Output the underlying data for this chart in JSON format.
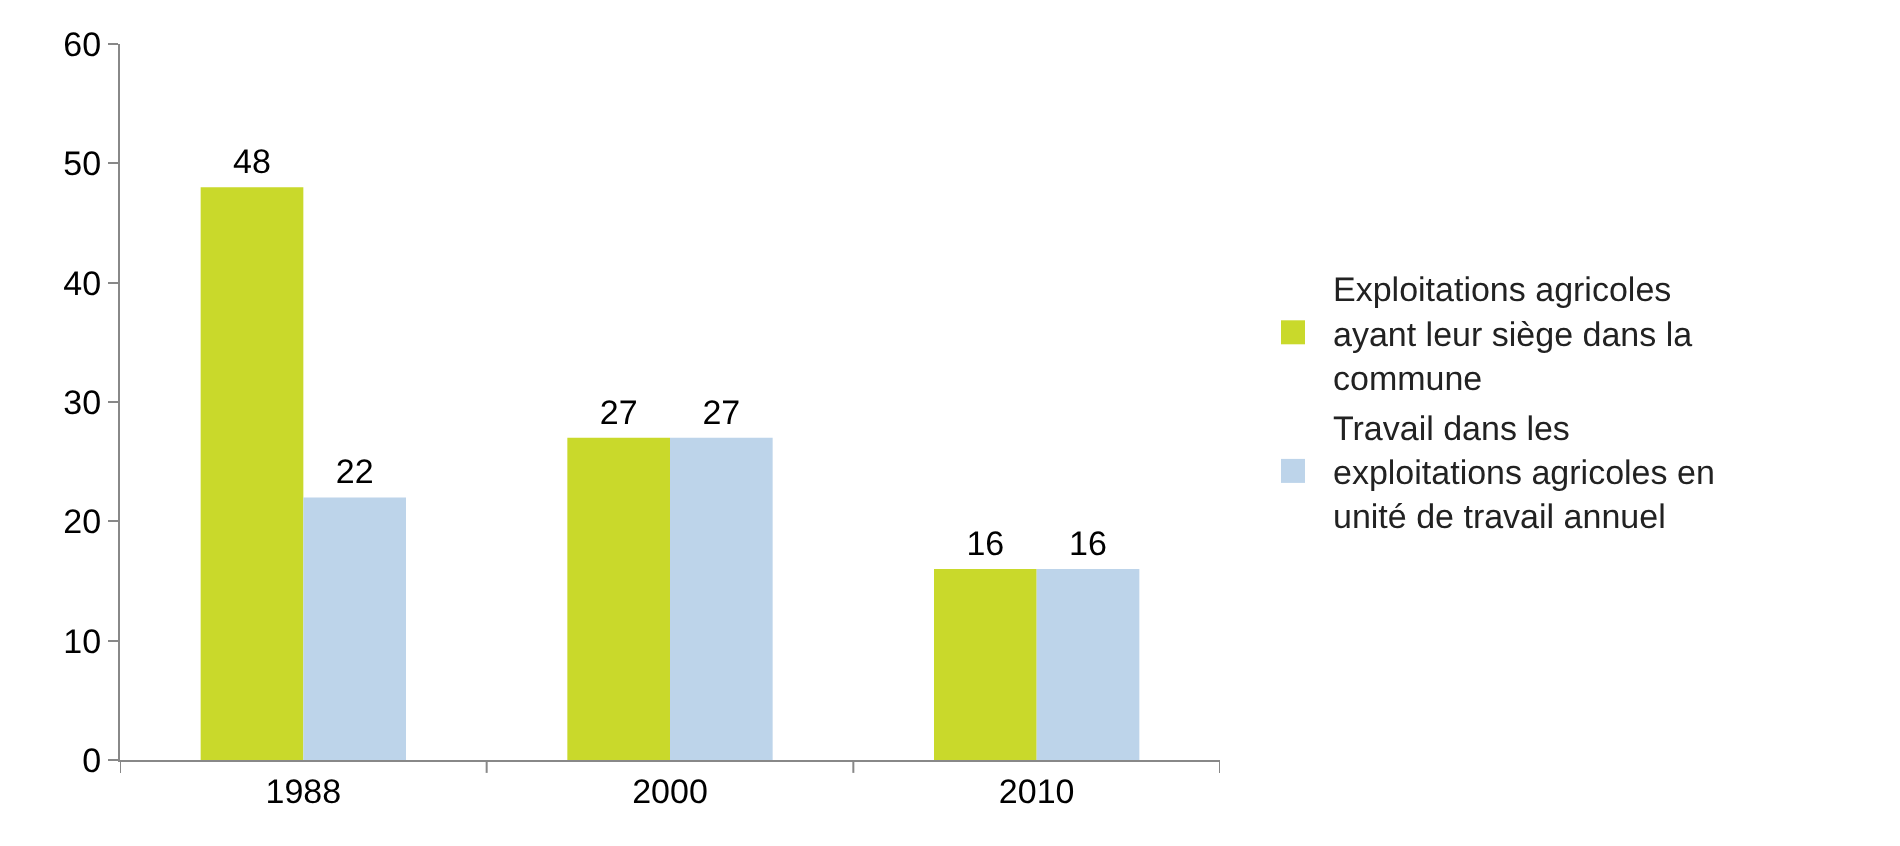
{
  "chart_data": {
    "type": "bar",
    "categories": [
      "1988",
      "2000",
      "2010"
    ],
    "series": [
      {
        "name": "Exploitations agricoles ayant leur siège dans la commune",
        "color": "#c9d92b",
        "values": [
          48,
          27,
          16
        ]
      },
      {
        "name": "Travail dans les exploitations agricoles en unité de travail annuel",
        "color": "#bdd4ea",
        "values": [
          22,
          27,
          16
        ]
      }
    ],
    "ylim": [
      0,
      60
    ],
    "yticks": [
      0,
      10,
      20,
      30,
      40,
      50,
      60
    ],
    "grid": false,
    "legend": "right",
    "data_labels": true
  }
}
